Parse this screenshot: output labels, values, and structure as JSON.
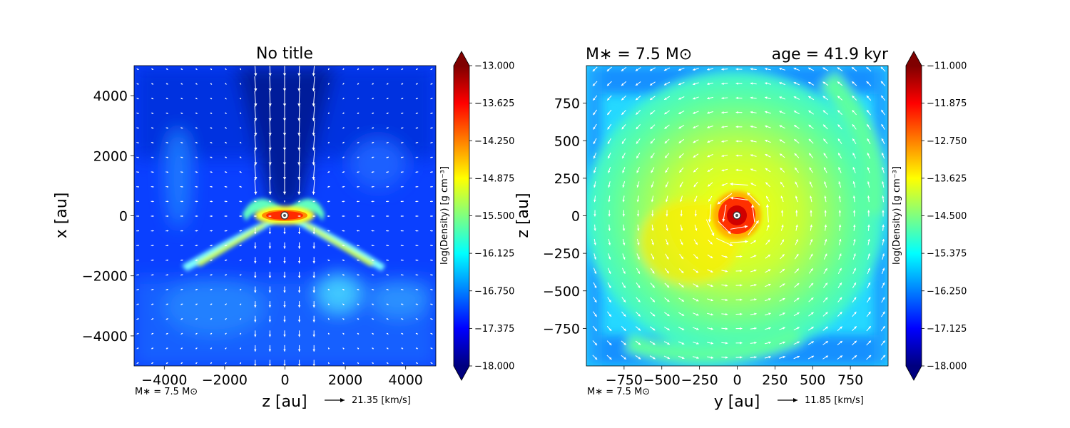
{
  "chart_data": [
    {
      "type": "heatmap",
      "title": "No title",
      "xlabel": "z [au]",
      "ylabel": "x [au]",
      "xlim": [
        -5000,
        5000
      ],
      "ylim": [
        -5000,
        5000
      ],
      "xticks": [
        -4000,
        -2000,
        0,
        2000,
        4000
      ],
      "xtick_labels": [
        "−4000",
        "−2000",
        "0",
        "2000",
        "4000"
      ],
      "yticks": [
        4000,
        2000,
        0,
        -2000,
        -4000
      ],
      "ytick_labels": [
        "4000",
        "2000",
        "0",
        "−2000",
        "−4000"
      ],
      "colorbar": {
        "label": "log(Density) [g cm⁻³]",
        "min": -18.0,
        "max": -13.0,
        "ticks": [
          -13.0,
          -13.625,
          -14.25,
          -14.875,
          -15.5,
          -16.125,
          -16.75,
          -17.375,
          -18.0
        ],
        "tick_labels": [
          "−13.000",
          "−13.625",
          "−14.250",
          "−14.875",
          "−15.500",
          "−16.125",
          "−16.750",
          "−17.375",
          "−18.000"
        ],
        "colormap": "jet"
      },
      "mass_label": "M∗ = 7.5 M⊙",
      "velocity_key": "21.35 [km/s]",
      "density_features": {
        "background_log_density": -17.2,
        "central_disk_peak": -13.6,
        "outflow_cavity_log_density": -17.9,
        "arm_log_density": -15.6
      },
      "vector_field": "bipolar outflow along x, infall toward center"
    },
    {
      "type": "heatmap",
      "title_left": "M∗ = 7.5 M⊙",
      "title_right": "age = 41.9 kyr",
      "xlabel": "y [au]",
      "ylabel": "z [au]",
      "xlim": [
        -1000,
        1000
      ],
      "ylim": [
        -1000,
        1000
      ],
      "xticks": [
        -750,
        -500,
        -250,
        0,
        250,
        500,
        750
      ],
      "xtick_labels": [
        "−750",
        "−500",
        "−250",
        "0",
        "250",
        "500",
        "750"
      ],
      "yticks": [
        750,
        500,
        250,
        0,
        -250,
        -500,
        -750
      ],
      "ytick_labels": [
        "750",
        "500",
        "250",
        "0",
        "−250",
        "−500",
        "−750"
      ],
      "colorbar": {
        "label": "log(Density) [g cm⁻³]",
        "min": -18.0,
        "max": -11.0,
        "ticks": [
          -11.0,
          -11.875,
          -12.75,
          -13.625,
          -14.5,
          -15.375,
          -16.25,
          -17.125,
          -18.0
        ],
        "tick_labels": [
          "−11.000",
          "−11.875",
          "−12.750",
          "−13.625",
          "−14.500",
          "−15.375",
          "−16.250",
          "−17.125",
          "−18.000"
        ],
        "colormap": "jet"
      },
      "mass_label": "M∗ = 7.5 M⊙",
      "velocity_key": "11.85 [km/s]",
      "density_features": {
        "central_peak": -11.8,
        "envelope_log_density": -13.9,
        "outer_log_density": -15.4
      },
      "vector_field": "counter-clockwise rotation around center"
    }
  ]
}
